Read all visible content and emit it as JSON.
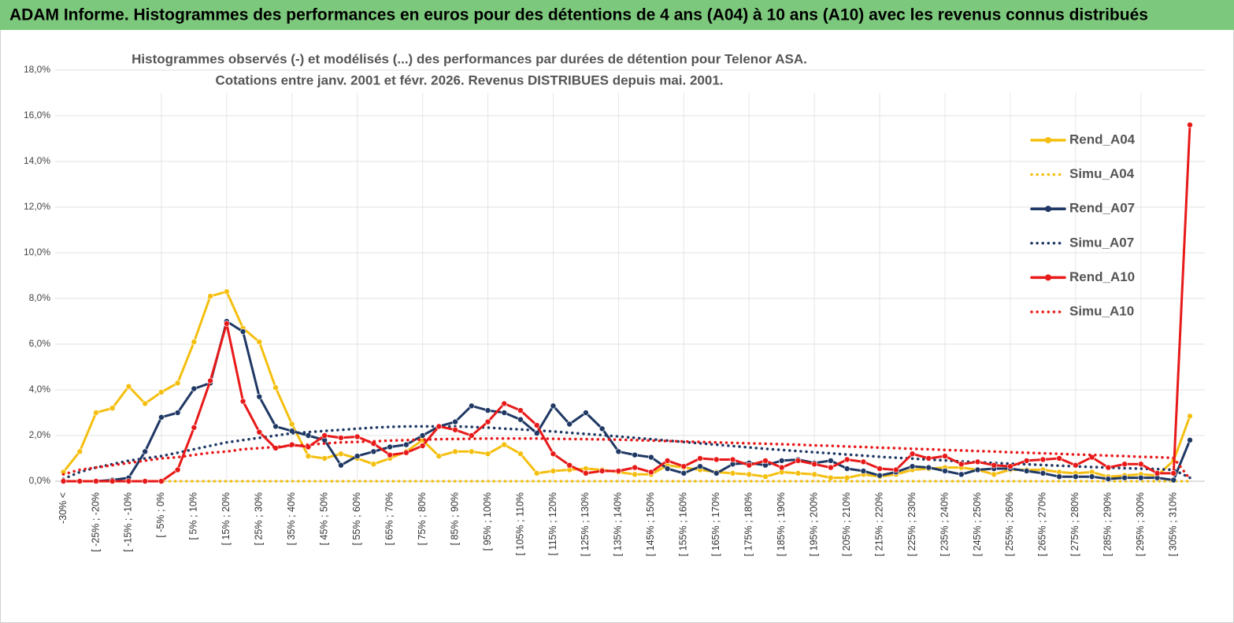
{
  "header": {
    "title": "ADAM Informe. Histogrammes des performances en euros pour des détentions de 4 ans (A04) à 10 ans (A10) avec les revenus connus distribués"
  },
  "chart_data": {
    "type": "line",
    "title": "Histogrammes observés (-) et modélisés (...)  des performances par durées de détention pour Telenor ASA.",
    "subtitle": "Cotations entre janv. 2001 et févr. 2026. Revenus DISTRIBUES depuis mai. 2001.",
    "categories": [
      "-30% <",
      null,
      "[ -25% ; -20%",
      null,
      "[ -15% ; -10%",
      null,
      "[ -5% ; 0%",
      null,
      "[ 5% ; 10%",
      null,
      "[ 15% ; 20%",
      null,
      "[ 25% ; 30%",
      null,
      "[ 35% ; 40%",
      null,
      "[ 45% ; 50%",
      null,
      "[ 55% ; 60%",
      null,
      "[ 65% ; 70%",
      null,
      "[ 75% ; 80%",
      null,
      "[ 85% ; 90%",
      null,
      "[ 95% ; 100%",
      null,
      "[ 105% ; 110%",
      null,
      "[ 115% ; 120%",
      null,
      "[ 125% ; 130%",
      null,
      "[ 135% ; 140%",
      null,
      "[ 145% ; 150%",
      null,
      "[ 155% ; 160%",
      null,
      "[ 165% ; 170%",
      null,
      "[ 175% ; 180%",
      null,
      "[ 185% ; 190%",
      null,
      "[ 195% ; 200%",
      null,
      "[ 205% ; 210%",
      null,
      "[ 215% ; 220%",
      null,
      "[ 225% ; 230%",
      null,
      "[ 235% ; 240%",
      null,
      "[ 245% ; 250%",
      null,
      "[ 255% ; 260%",
      null,
      "[ 265% ; 270%",
      null,
      "[ 275% ; 280%",
      null,
      "[ 285% ; 290%",
      null,
      "[ 295% ; 300%",
      null,
      "[ 305% ; 310%",
      null
    ],
    "series": [
      {
        "name": "Rend_A04",
        "color": "#f5bf0f",
        "style": "solid",
        "values": [
          0.4,
          1.3,
          3.0,
          3.2,
          4.15,
          3.4,
          3.9,
          4.3,
          6.1,
          8.1,
          8.3,
          6.7,
          6.1,
          4.1,
          2.5,
          1.1,
          1.0,
          1.2,
          1.0,
          0.75,
          1.0,
          1.3,
          1.8,
          1.1,
          1.3,
          1.3,
          1.2,
          1.6,
          1.2,
          0.35,
          0.45,
          0.5,
          0.55,
          0.5,
          0.4,
          0.3,
          0.3,
          0.7,
          0.6,
          0.5,
          0.4,
          0.35,
          0.3,
          0.2,
          0.4,
          0.35,
          0.3,
          0.15,
          0.15,
          0.3,
          0.2,
          0.3,
          0.5,
          0.55,
          0.6,
          0.6,
          0.5,
          0.3,
          0.5,
          0.5,
          0.5,
          0.4,
          0.35,
          0.4,
          0.2,
          0.25,
          0.3,
          0.25,
          0.9,
          2.85
        ]
      },
      {
        "name": "Simu_A04",
        "color": "#f5bf0f",
        "style": "dotted",
        "values": [
          0,
          0,
          0,
          0,
          0,
          0,
          0,
          0,
          0,
          0,
          0,
          0,
          0,
          0,
          0,
          0,
          0,
          0,
          0,
          0,
          0,
          0,
          0,
          0,
          0,
          0,
          0,
          0,
          0,
          0,
          0,
          0,
          0,
          0,
          0,
          0,
          0,
          0,
          0,
          0,
          0,
          0,
          0,
          0,
          0,
          0,
          0,
          0,
          0,
          0,
          0,
          0,
          0,
          0,
          0,
          0,
          0,
          0,
          0,
          0,
          0,
          0,
          0,
          0,
          0,
          0,
          0,
          0,
          0,
          0
        ]
      },
      {
        "name": "Rend_A07",
        "color": "#1f3864",
        "style": "solid",
        "values": [
          0,
          0,
          0,
          0.05,
          0.15,
          1.3,
          2.8,
          3.0,
          4.05,
          4.3,
          7.0,
          6.55,
          3.7,
          2.4,
          2.2,
          2.0,
          1.8,
          0.7,
          1.1,
          1.3,
          1.5,
          1.6,
          2.0,
          2.4,
          2.6,
          3.3,
          3.1,
          3.0,
          2.7,
          2.1,
          3.3,
          2.5,
          3.0,
          2.3,
          1.3,
          1.15,
          1.05,
          0.55,
          0.35,
          0.65,
          0.35,
          0.75,
          0.8,
          0.7,
          0.9,
          0.95,
          0.8,
          0.9,
          0.55,
          0.45,
          0.25,
          0.4,
          0.65,
          0.6,
          0.45,
          0.3,
          0.5,
          0.55,
          0.55,
          0.45,
          0.35,
          0.2,
          0.2,
          0.2,
          0.1,
          0.15,
          0.15,
          0.15,
          0.05,
          1.8
        ]
      },
      {
        "name": "Simu_A07",
        "color": "#1f3864",
        "style": "dotted",
        "values": [
          0.1,
          0.4,
          0.6,
          0.75,
          0.9,
          1.0,
          1.1,
          1.25,
          1.4,
          1.55,
          1.7,
          1.8,
          1.9,
          2.0,
          2.1,
          2.15,
          2.2,
          2.25,
          2.3,
          2.35,
          2.38,
          2.4,
          2.4,
          2.4,
          2.4,
          2.38,
          2.35,
          2.3,
          2.27,
          2.22,
          2.18,
          2.12,
          2.07,
          2.02,
          1.96,
          1.9,
          1.84,
          1.78,
          1.72,
          1.66,
          1.6,
          1.54,
          1.48,
          1.42,
          1.37,
          1.32,
          1.27,
          1.22,
          1.17,
          1.12,
          1.07,
          1.03,
          0.99,
          0.95,
          0.91,
          0.87,
          0.83,
          0.8,
          0.77,
          0.74,
          0.71,
          0.68,
          0.65,
          0.62,
          0.6,
          0.57,
          0.55,
          0.53,
          0.5,
          0.15
        ]
      },
      {
        "name": "Rend_A10",
        "color": "#e81919",
        "style": "solid",
        "values": [
          0,
          0,
          0,
          0,
          0,
          0,
          0,
          0.5,
          2.35,
          4.4,
          6.9,
          3.5,
          2.15,
          1.45,
          1.6,
          1.5,
          2.0,
          1.9,
          1.95,
          1.65,
          1.15,
          1.25,
          1.55,
          2.4,
          2.25,
          2.0,
          2.6,
          3.4,
          3.1,
          2.45,
          1.2,
          0.7,
          0.35,
          0.45,
          0.45,
          0.6,
          0.4,
          0.9,
          0.65,
          1.0,
          0.95,
          0.95,
          0.7,
          0.9,
          0.6,
          0.9,
          0.75,
          0.6,
          0.95,
          0.85,
          0.55,
          0.5,
          1.2,
          1.0,
          1.1,
          0.75,
          0.85,
          0.7,
          0.65,
          0.9,
          0.95,
          1.0,
          0.7,
          1.05,
          0.6,
          0.75,
          0.75,
          0.35,
          0.35,
          15.6
        ]
      },
      {
        "name": "Simu_A10",
        "color": "#e81919",
        "style": "dotted",
        "values": [
          0.3,
          0.5,
          0.6,
          0.7,
          0.8,
          0.9,
          1.0,
          1.05,
          1.15,
          1.25,
          1.3,
          1.4,
          1.45,
          1.5,
          1.55,
          1.6,
          1.65,
          1.7,
          1.72,
          1.75,
          1.78,
          1.8,
          1.82,
          1.84,
          1.85,
          1.86,
          1.87,
          1.87,
          1.87,
          1.87,
          1.86,
          1.85,
          1.84,
          1.83,
          1.82,
          1.8,
          1.78,
          1.76,
          1.74,
          1.72,
          1.7,
          1.68,
          1.66,
          1.64,
          1.62,
          1.6,
          1.57,
          1.55,
          1.52,
          1.5,
          1.47,
          1.45,
          1.42,
          1.4,
          1.37,
          1.35,
          1.32,
          1.3,
          1.27,
          1.25,
          1.22,
          1.2,
          1.17,
          1.15,
          1.12,
          1.1,
          1.07,
          1.05,
          1.02,
          0.1
        ]
      }
    ],
    "ylim": [
      0,
      18
    ],
    "yticks": [
      {
        "value": 0,
        "label": "0,0%"
      },
      {
        "value": 2,
        "label": "2,0%"
      },
      {
        "value": 4,
        "label": "4,0%"
      },
      {
        "value": 6,
        "label": "6,0%"
      },
      {
        "value": 8,
        "label": "8,0%"
      },
      {
        "value": 10,
        "label": "10,0%"
      },
      {
        "value": 12,
        "label": "12,0%"
      },
      {
        "value": 14,
        "label": "14,0%"
      },
      {
        "value": 16,
        "label": "16,0%"
      },
      {
        "value": 18,
        "label": "18,0%"
      }
    ],
    "grid": true,
    "legend": "right"
  }
}
